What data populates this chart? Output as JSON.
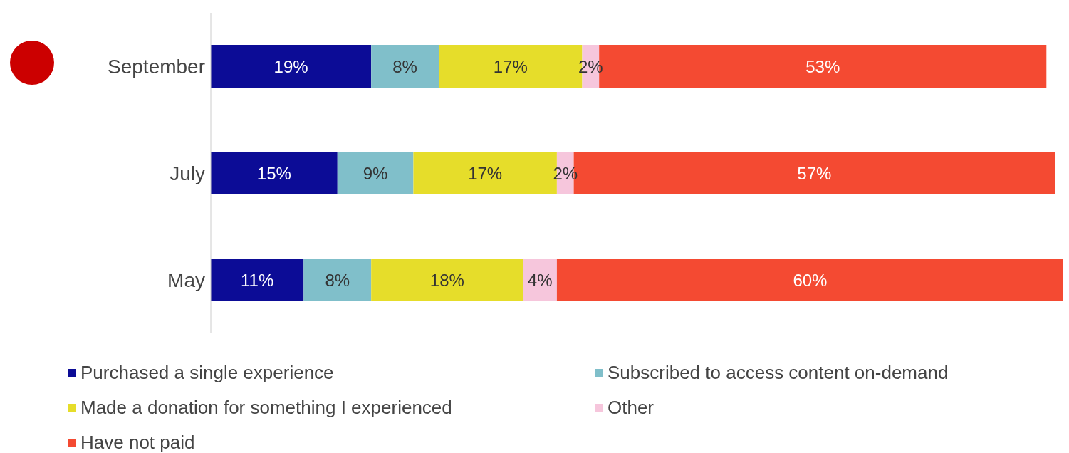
{
  "chart_data": {
    "type": "bar",
    "orientation": "horizontal",
    "stacked": true,
    "categories": [
      "September",
      "July",
      "May"
    ],
    "series": [
      {
        "name": "Purchased a single experience",
        "color": "#0c0c96",
        "values": [
          19,
          15,
          11
        ],
        "value_labels": [
          "19%",
          "15%",
          "11%"
        ]
      },
      {
        "name": "Subscribed to access content on-demand",
        "color": "#80bfca",
        "values": [
          8,
          9,
          8
        ],
        "value_labels": [
          "8%",
          "9%",
          "8%"
        ]
      },
      {
        "name": "Made a donation for something I experienced",
        "color": "#e6dd2a",
        "values": [
          17,
          17,
          18
        ],
        "value_labels": [
          "17%",
          "17%",
          "18%"
        ]
      },
      {
        "name": "Other",
        "color": "#f6c6dc",
        "values": [
          2,
          2,
          4
        ],
        "value_labels": [
          "2%",
          "2%",
          "4%"
        ]
      },
      {
        "name": "Have not paid",
        "color": "#f44a32",
        "values": [
          53,
          57,
          60
        ],
        "value_labels": [
          "53%",
          "57%",
          "60%"
        ]
      }
    ],
    "legend": "bottom"
  }
}
